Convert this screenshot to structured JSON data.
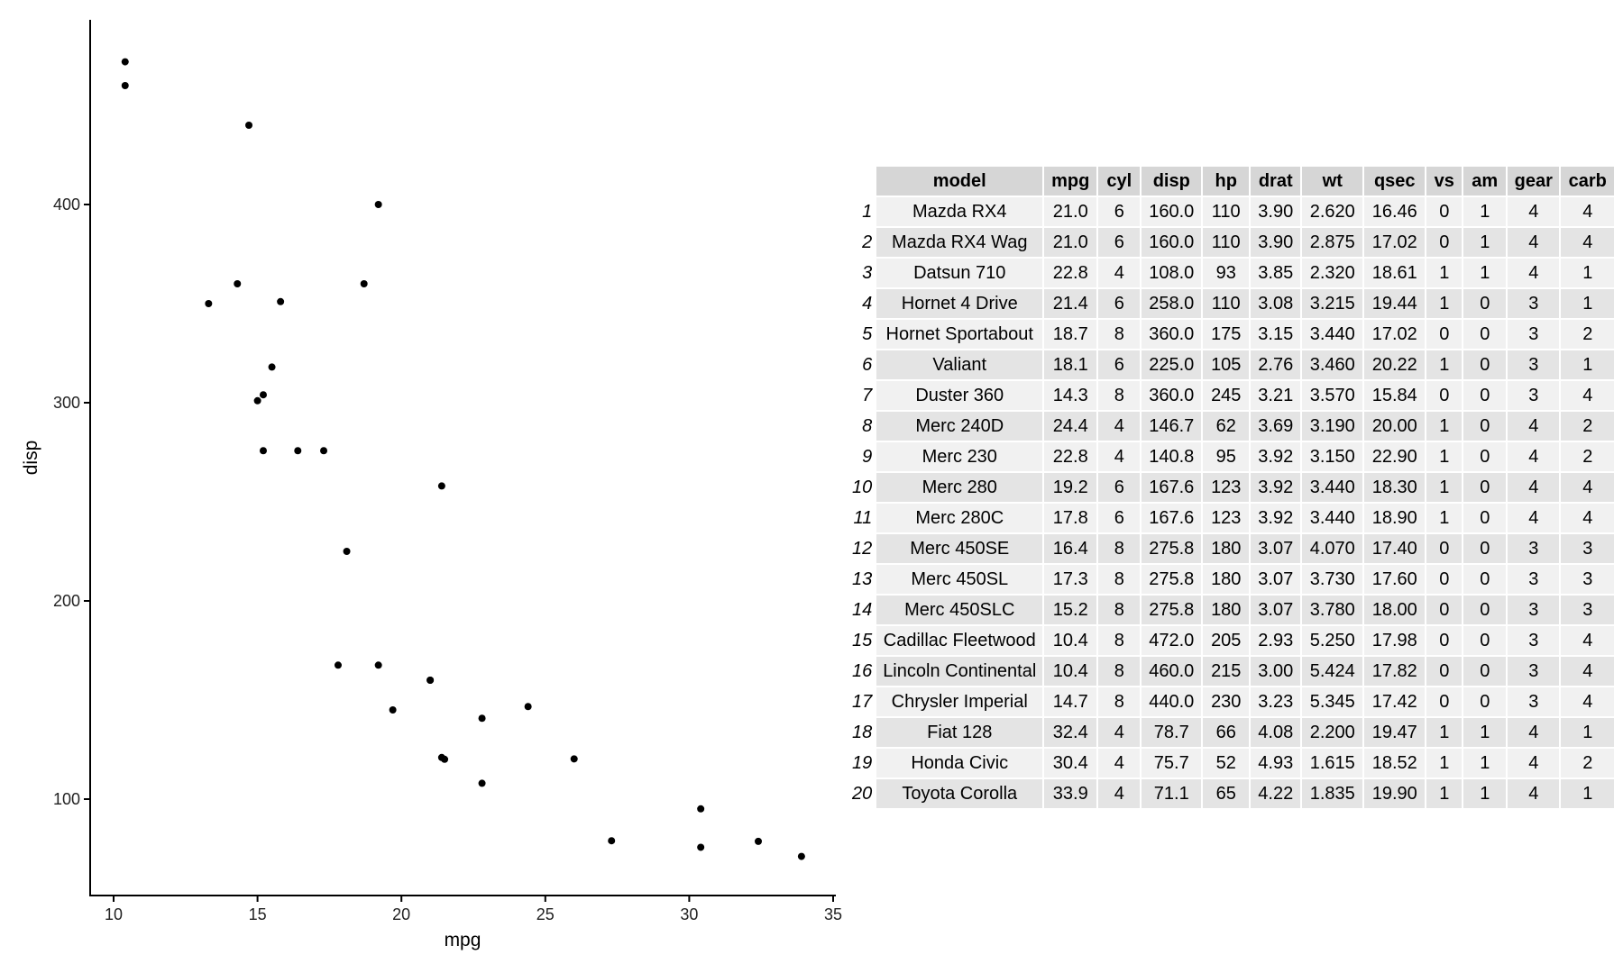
{
  "chart_data": {
    "type": "scatter",
    "title": "",
    "xlabel": "mpg",
    "ylabel": "disp",
    "xlim": [
      9.2,
      35.1
    ],
    "ylim": [
      52,
      490
    ],
    "xticks": [
      10,
      15,
      20,
      25,
      30,
      35
    ],
    "yticks": [
      100,
      200,
      300,
      400
    ],
    "grid": false,
    "points": [
      {
        "x": 21.0,
        "y": 160
      },
      {
        "x": 21.0,
        "y": 160
      },
      {
        "x": 22.8,
        "y": 108
      },
      {
        "x": 21.4,
        "y": 258
      },
      {
        "x": 18.7,
        "y": 360
      },
      {
        "x": 18.1,
        "y": 225
      },
      {
        "x": 14.3,
        "y": 360
      },
      {
        "x": 24.4,
        "y": 146.7
      },
      {
        "x": 22.8,
        "y": 140.8
      },
      {
        "x": 19.2,
        "y": 167.6
      },
      {
        "x": 17.8,
        "y": 167.6
      },
      {
        "x": 16.4,
        "y": 275.8
      },
      {
        "x": 17.3,
        "y": 275.8
      },
      {
        "x": 15.2,
        "y": 275.8
      },
      {
        "x": 10.4,
        "y": 472
      },
      {
        "x": 10.4,
        "y": 460
      },
      {
        "x": 14.7,
        "y": 440
      },
      {
        "x": 32.4,
        "y": 78.7
      },
      {
        "x": 30.4,
        "y": 75.7
      },
      {
        "x": 33.9,
        "y": 71.1
      },
      {
        "x": 21.5,
        "y": 120.1
      },
      {
        "x": 15.5,
        "y": 318
      },
      {
        "x": 15.2,
        "y": 304
      },
      {
        "x": 13.3,
        "y": 350
      },
      {
        "x": 19.2,
        "y": 400
      },
      {
        "x": 27.3,
        "y": 79
      },
      {
        "x": 26.0,
        "y": 120.3
      },
      {
        "x": 30.4,
        "y": 95.1
      },
      {
        "x": 15.8,
        "y": 351
      },
      {
        "x": 19.7,
        "y": 145
      },
      {
        "x": 15.0,
        "y": 301
      },
      {
        "x": 21.4,
        "y": 121
      }
    ]
  },
  "table": {
    "columns": [
      "model",
      "mpg",
      "cyl",
      "disp",
      "hp",
      "drat",
      "wt",
      "qsec",
      "vs",
      "am",
      "gear",
      "carb"
    ],
    "rows": [
      [
        "1",
        "Mazda RX4",
        "21.0",
        "6",
        "160.0",
        "110",
        "3.90",
        "2.620",
        "16.46",
        "0",
        "1",
        "4",
        "4"
      ],
      [
        "2",
        "Mazda RX4 Wag",
        "21.0",
        "6",
        "160.0",
        "110",
        "3.90",
        "2.875",
        "17.02",
        "0",
        "1",
        "4",
        "4"
      ],
      [
        "3",
        "Datsun 710",
        "22.8",
        "4",
        "108.0",
        "93",
        "3.85",
        "2.320",
        "18.61",
        "1",
        "1",
        "4",
        "1"
      ],
      [
        "4",
        "Hornet 4 Drive",
        "21.4",
        "6",
        "258.0",
        "110",
        "3.08",
        "3.215",
        "19.44",
        "1",
        "0",
        "3",
        "1"
      ],
      [
        "5",
        "Hornet Sportabout",
        "18.7",
        "8",
        "360.0",
        "175",
        "3.15",
        "3.440",
        "17.02",
        "0",
        "0",
        "3",
        "2"
      ],
      [
        "6",
        "Valiant",
        "18.1",
        "6",
        "225.0",
        "105",
        "2.76",
        "3.460",
        "20.22",
        "1",
        "0",
        "3",
        "1"
      ],
      [
        "7",
        "Duster 360",
        "14.3",
        "8",
        "360.0",
        "245",
        "3.21",
        "3.570",
        "15.84",
        "0",
        "0",
        "3",
        "4"
      ],
      [
        "8",
        "Merc 240D",
        "24.4",
        "4",
        "146.7",
        "62",
        "3.69",
        "3.190",
        "20.00",
        "1",
        "0",
        "4",
        "2"
      ],
      [
        "9",
        "Merc 230",
        "22.8",
        "4",
        "140.8",
        "95",
        "3.92",
        "3.150",
        "22.90",
        "1",
        "0",
        "4",
        "2"
      ],
      [
        "10",
        "Merc 280",
        "19.2",
        "6",
        "167.6",
        "123",
        "3.92",
        "3.440",
        "18.30",
        "1",
        "0",
        "4",
        "4"
      ],
      [
        "11",
        "Merc 280C",
        "17.8",
        "6",
        "167.6",
        "123",
        "3.92",
        "3.440",
        "18.90",
        "1",
        "0",
        "4",
        "4"
      ],
      [
        "12",
        "Merc 450SE",
        "16.4",
        "8",
        "275.8",
        "180",
        "3.07",
        "4.070",
        "17.40",
        "0",
        "0",
        "3",
        "3"
      ],
      [
        "13",
        "Merc 450SL",
        "17.3",
        "8",
        "275.8",
        "180",
        "3.07",
        "3.730",
        "17.60",
        "0",
        "0",
        "3",
        "3"
      ],
      [
        "14",
        "Merc 450SLC",
        "15.2",
        "8",
        "275.8",
        "180",
        "3.07",
        "3.780",
        "18.00",
        "0",
        "0",
        "3",
        "3"
      ],
      [
        "15",
        "Cadillac Fleetwood",
        "10.4",
        "8",
        "472.0",
        "205",
        "2.93",
        "5.250",
        "17.98",
        "0",
        "0",
        "3",
        "4"
      ],
      [
        "16",
        "Lincoln Continental",
        "10.4",
        "8",
        "460.0",
        "215",
        "3.00",
        "5.424",
        "17.82",
        "0",
        "0",
        "3",
        "4"
      ],
      [
        "17",
        "Chrysler Imperial",
        "14.7",
        "8",
        "440.0",
        "230",
        "3.23",
        "5.345",
        "17.42",
        "0",
        "0",
        "3",
        "4"
      ],
      [
        "18",
        "Fiat 128",
        "32.4",
        "4",
        "78.7",
        "66",
        "4.08",
        "2.200",
        "19.47",
        "1",
        "1",
        "4",
        "1"
      ],
      [
        "19",
        "Honda Civic",
        "30.4",
        "4",
        "75.7",
        "52",
        "4.93",
        "1.615",
        "18.52",
        "1",
        "1",
        "4",
        "2"
      ],
      [
        "20",
        "Toyota Corolla",
        "33.9",
        "4",
        "71.1",
        "65",
        "4.22",
        "1.835",
        "19.90",
        "1",
        "1",
        "4",
        "1"
      ]
    ]
  }
}
